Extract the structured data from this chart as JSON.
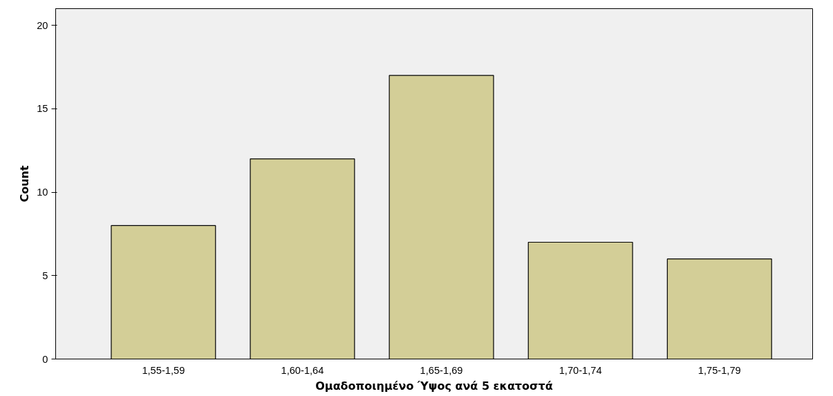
{
  "chart_data": {
    "type": "bar",
    "xlabel": "Ομαδοποιημένο Ύψος ανά 5 εκατοστά",
    "ylabel": "Count",
    "categories": [
      "1,55-1,59",
      "1,60-1,64",
      "1,65-1,69",
      "1,70-1,74",
      "1,75-1,79"
    ],
    "values": [
      8,
      12,
      17,
      7,
      6
    ],
    "color": "#d3ce97",
    "ylim": [
      0,
      21
    ],
    "yticks": [
      0,
      5,
      10,
      15,
      20
    ],
    "grid": false
  }
}
